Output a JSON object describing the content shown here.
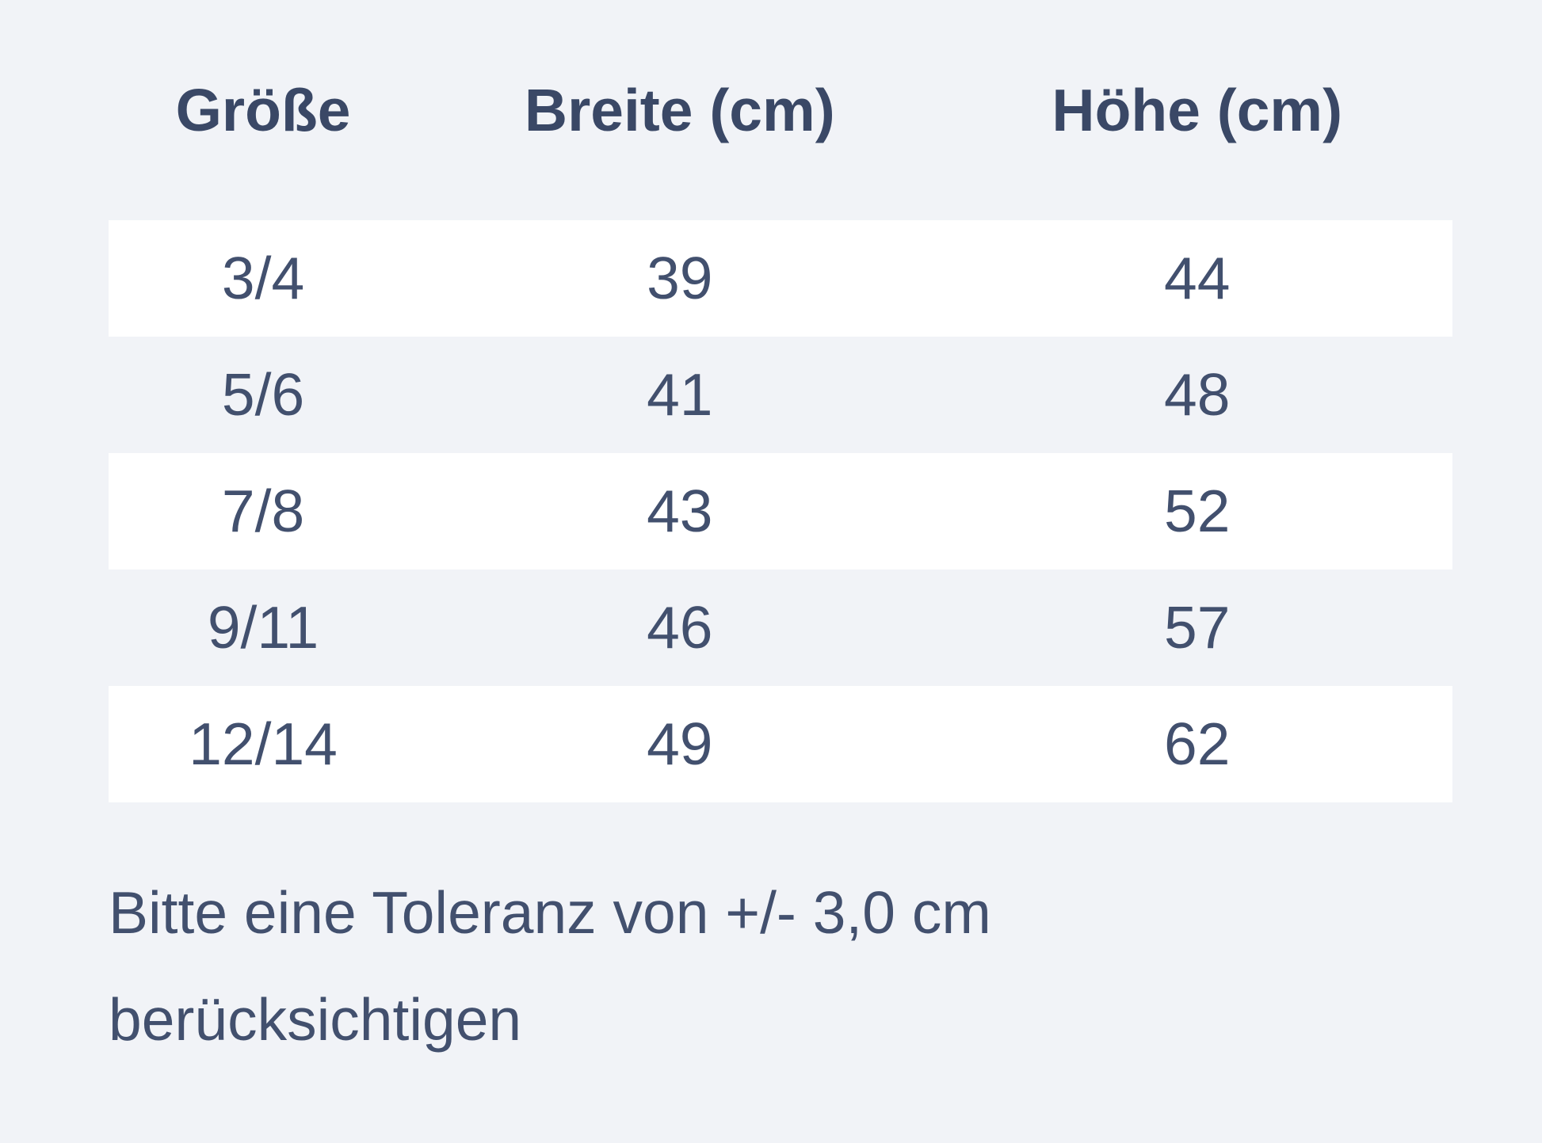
{
  "page": {
    "background_color": "#f1f3f7",
    "stripe_row_color": "#ffffff",
    "text_color": "#42506e",
    "header_text_color": "#3a4866"
  },
  "size_chart": {
    "columns": [
      "Größe",
      "Breite (cm)",
      "Höhe (cm)"
    ],
    "rows": [
      [
        "3/4",
        "39",
        "44"
      ],
      [
        "5/6",
        "41",
        "48"
      ],
      [
        "7/8",
        "43",
        "52"
      ],
      [
        "9/11",
        "46",
        "57"
      ],
      [
        "12/14",
        "49",
        "62"
      ]
    ],
    "tolerance_note": "Bitte eine Toleranz von +/- 3,0 cm berücksichtigen"
  }
}
